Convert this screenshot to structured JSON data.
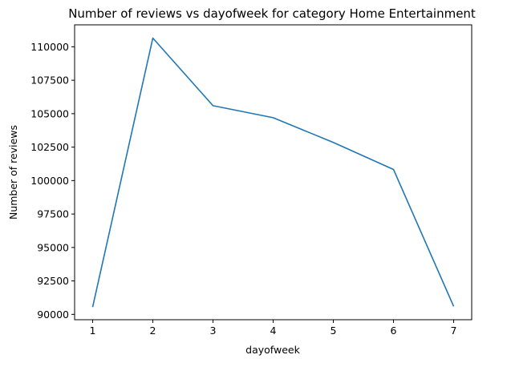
{
  "chart_data": {
    "type": "line",
    "title": "Number of reviews vs dayofweek for category Home Entertainment",
    "xlabel": "dayofweek",
    "ylabel": "Number of reviews",
    "x": [
      1,
      2,
      3,
      4,
      5,
      6,
      7
    ],
    "series": [
      {
        "values": [
          90550,
          110650,
          105600,
          104700,
          102850,
          100830,
          90600
        ]
      }
    ],
    "xticks": [
      "1",
      "2",
      "3",
      "4",
      "5",
      "6",
      "7"
    ],
    "yticks": [
      "90000",
      "92500",
      "95000",
      "97500",
      "100000",
      "102500",
      "105000",
      "107500",
      "110000"
    ],
    "ylim": [
      89600,
      111640
    ],
    "xlim": [
      0.7,
      7.3
    ],
    "grid": false,
    "line_color": "#1f77b4"
  }
}
